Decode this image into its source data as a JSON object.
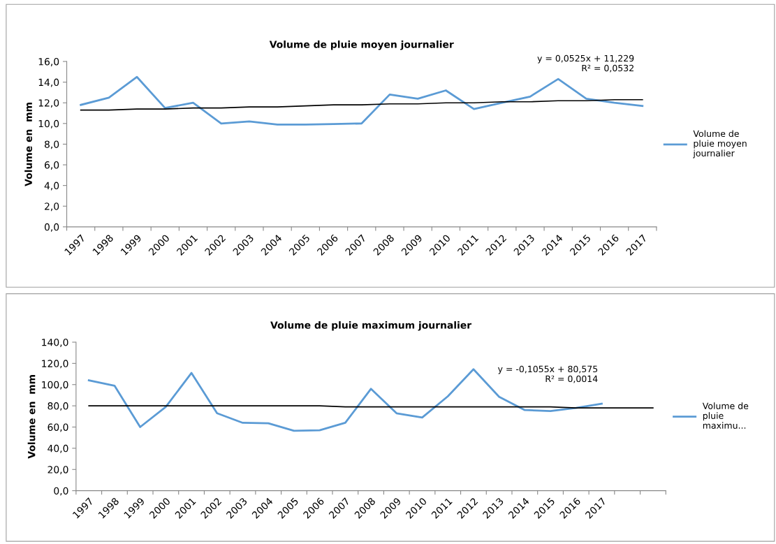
{
  "chart_data": [
    {
      "type": "line",
      "title": "Volume de pluie moyen journalier",
      "ylabel": "Volume en  mm",
      "categories": [
        "1997",
        "1998",
        "1999",
        "2000",
        "2001",
        "2002",
        "2003",
        "2004",
        "2005",
        "2006",
        "2007",
        "2008",
        "2009",
        "2010",
        "2011",
        "2012",
        "2013",
        "2014",
        "2015",
        "2016",
        "2017"
      ],
      "series": [
        {
          "name": "Volume de\npluie moyen\njournalier",
          "color": "#5b9bd5",
          "values": [
            11.8,
            12.5,
            14.5,
            11.5,
            12.0,
            10.0,
            10.2,
            9.9,
            9.9,
            9.95,
            10.0,
            12.8,
            12.4,
            13.2,
            11.4,
            12.0,
            12.6,
            14.3,
            12.4,
            12.0,
            11.7
          ]
        },
        {
          "type": "line",
          "color": "#000000",
          "values": [
            11.3,
            11.3,
            11.4,
            11.4,
            11.5,
            11.5,
            11.6,
            11.6,
            11.7,
            11.8,
            11.8,
            11.9,
            11.9,
            12.0,
            12.0,
            12.1,
            12.1,
            12.2,
            12.2,
            12.3,
            12.3
          ]
        }
      ],
      "ylim": [
        0,
        16
      ],
      "yticks": [
        {
          "value": 0,
          "label": "0,0"
        },
        {
          "value": 2,
          "label": "2,0"
        },
        {
          "value": 4,
          "label": "4,0"
        },
        {
          "value": 6,
          "label": "6,0"
        },
        {
          "value": 8,
          "label": "8,0"
        },
        {
          "value": 10,
          "label": "10,0"
        },
        {
          "value": 12,
          "label": "12,0"
        },
        {
          "value": 14,
          "label": "14,0"
        },
        {
          "value": 16,
          "label": "16,0"
        }
      ],
      "annotations": [
        "y = 0,0525x + 11,229\nR² = 0,0532"
      ],
      "legend": "right",
      "grid": false,
      "marker": "none",
      "line_style": "solid"
    },
    {
      "type": "line",
      "title": "Volume de pluie maximum journalier",
      "ylabel": "Volume en  mm",
      "categories": [
        "1997",
        "1998",
        "1999",
        "2000",
        "2001",
        "2002",
        "2003",
        "2004",
        "2005",
        "2006",
        "2007",
        "2008",
        "2009",
        "2010",
        "2011",
        "2012",
        "2013",
        "2014",
        "2015",
        "2016",
        "2017",
        null,
        null
      ],
      "series": [
        {
          "name": "Volume de\npluie\nmaximu...",
          "color": "#5b9bd5",
          "values": [
            104,
            99,
            60,
            79,
            111,
            73,
            64,
            63.5,
            56.5,
            57,
            64,
            96,
            73,
            69,
            89,
            114.5,
            88.5,
            76,
            75,
            78,
            82,
            null,
            null
          ]
        },
        {
          "type": "line",
          "color": "#000000",
          "values": [
            80,
            80,
            80,
            80,
            80,
            80,
            80,
            80,
            80,
            80,
            79,
            79,
            79,
            79,
            79,
            79,
            79,
            79,
            79,
            78,
            78,
            78,
            78
          ]
        }
      ],
      "ylim": [
        0,
        140
      ],
      "yticks": [
        {
          "value": 0,
          "label": "0,0"
        },
        {
          "value": 20,
          "label": "20,0"
        },
        {
          "value": 40,
          "label": "40,0"
        },
        {
          "value": 60,
          "label": "60,0"
        },
        {
          "value": 80,
          "label": "80,0"
        },
        {
          "value": 100,
          "label": "100,0"
        },
        {
          "value": 120,
          "label": "120,0"
        },
        {
          "value": 140,
          "label": "140,0"
        }
      ],
      "annotations": [
        "y = -0,1055x + 80,575\nR² = 0,0014"
      ],
      "legend": "right",
      "grid": false,
      "marker": "none",
      "line_style": "solid"
    }
  ]
}
